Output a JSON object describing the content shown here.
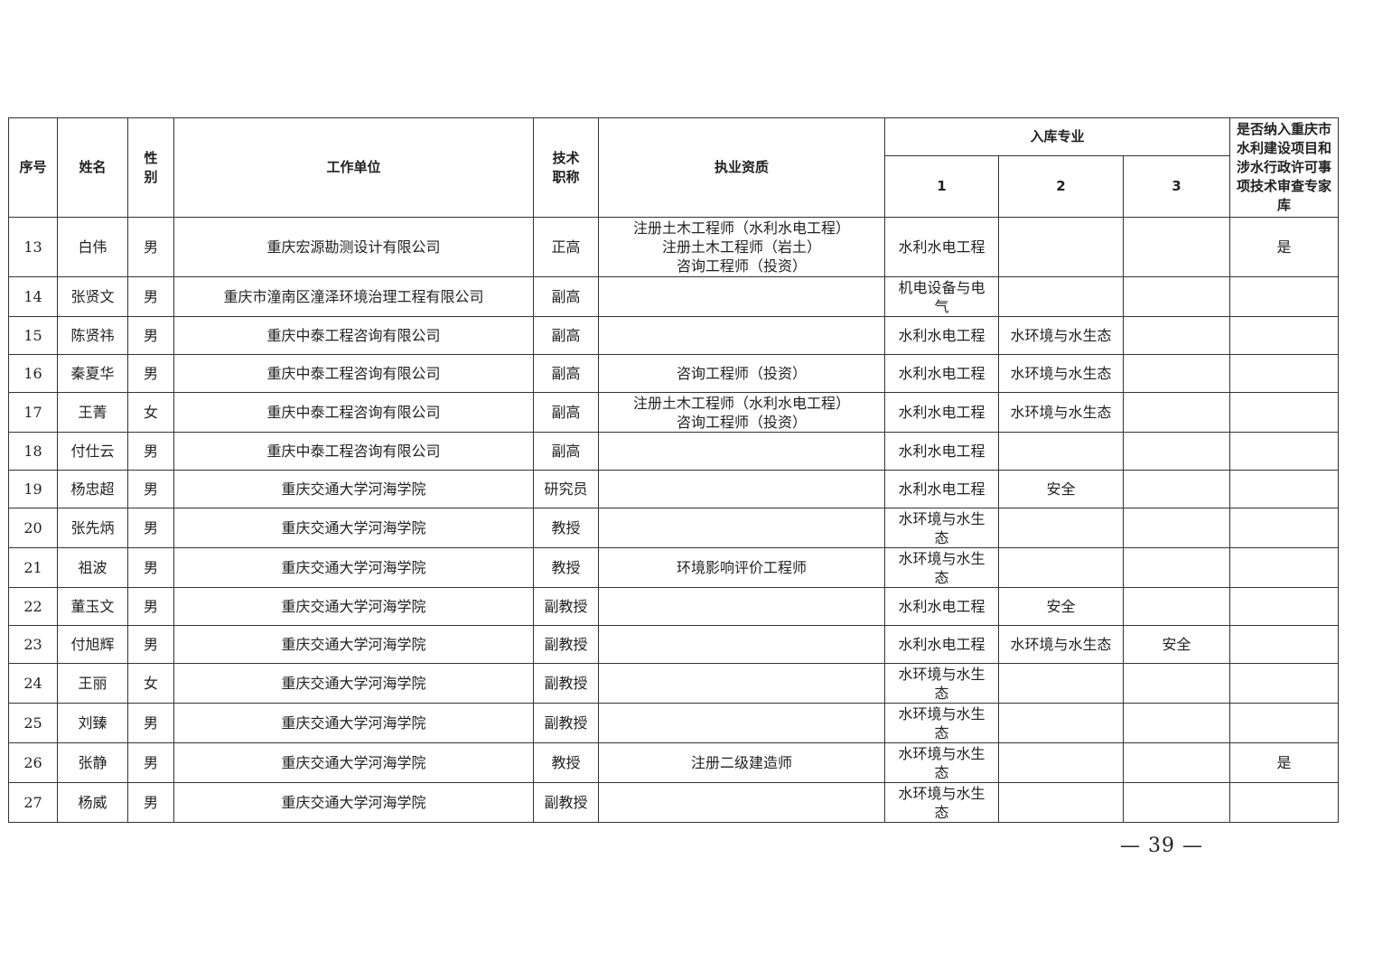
{
  "headers": {
    "no": "序号",
    "name": "姓名",
    "gender": "性\n别",
    "unit": "工作单位",
    "title": "技术\n职称",
    "qualification": "执业资质",
    "specialty": "入库专业",
    "specialty_1": "1",
    "specialty_2": "2",
    "specialty_3": "3",
    "included": "是否纳入重庆市水利建设项目和涉水行政许可事项技术审查专家库"
  },
  "rows": [
    {
      "no": "13",
      "name": "白伟",
      "gender": "男",
      "unit": "重庆宏源勘测设计有限公司",
      "title": "正高",
      "qual": "注册土木工程师（水利水电工程）\n注册土木工程师（岩土）\n咨询工程师（投资）",
      "s1": "水利水电工程",
      "s2": "",
      "s3": "",
      "inc": "是"
    },
    {
      "no": "14",
      "name": "张贤文",
      "gender": "男",
      "unit": "重庆市潼南区潼泽环境治理工程有限公司",
      "title": "副高",
      "qual": "",
      "s1": "机电设备与电气",
      "s2": "",
      "s3": "",
      "inc": ""
    },
    {
      "no": "15",
      "name": "陈贤祎",
      "gender": "男",
      "unit": "重庆中泰工程咨询有限公司",
      "title": "副高",
      "qual": "",
      "s1": "水利水电工程",
      "s2": "水环境与水生态",
      "s3": "",
      "inc": ""
    },
    {
      "no": "16",
      "name": "秦夏华",
      "gender": "男",
      "unit": "重庆中泰工程咨询有限公司",
      "title": "副高",
      "qual": "咨询工程师（投资）",
      "s1": "水利水电工程",
      "s2": "水环境与水生态",
      "s3": "",
      "inc": ""
    },
    {
      "no": "17",
      "name": "王菁",
      "gender": "女",
      "unit": "重庆中泰工程咨询有限公司",
      "title": "副高",
      "qual": "注册土木工程师（水利水电工程）\n咨询工程师（投资）",
      "s1": "水利水电工程",
      "s2": "水环境与水生态",
      "s3": "",
      "inc": ""
    },
    {
      "no": "18",
      "name": "付仕云",
      "gender": "男",
      "unit": "重庆中泰工程咨询有限公司",
      "title": "副高",
      "qual": "",
      "s1": "水利水电工程",
      "s2": "",
      "s3": "",
      "inc": ""
    },
    {
      "no": "19",
      "name": "杨忠超",
      "gender": "男",
      "unit": "重庆交通大学河海学院",
      "title": "研究员",
      "qual": "",
      "s1": "水利水电工程",
      "s2": "安全",
      "s3": "",
      "inc": ""
    },
    {
      "no": "20",
      "name": "张先炳",
      "gender": "男",
      "unit": "重庆交通大学河海学院",
      "title": "教授",
      "qual": "",
      "s1": "水环境与水生态",
      "s2": "",
      "s3": "",
      "inc": ""
    },
    {
      "no": "21",
      "name": "祖波",
      "gender": "男",
      "unit": "重庆交通大学河海学院",
      "title": "教授",
      "qual": "环境影响评价工程师",
      "s1": "水环境与水生态",
      "s2": "",
      "s3": "",
      "inc": ""
    },
    {
      "no": "22",
      "name": "董玉文",
      "gender": "男",
      "unit": "重庆交通大学河海学院",
      "title": "副教授",
      "qual": "",
      "s1": "水利水电工程",
      "s2": "安全",
      "s3": "",
      "inc": ""
    },
    {
      "no": "23",
      "name": "付旭辉",
      "gender": "男",
      "unit": "重庆交通大学河海学院",
      "title": "副教授",
      "qual": "",
      "s1": "水利水电工程",
      "s2": "水环境与水生态",
      "s3": "安全",
      "inc": ""
    },
    {
      "no": "24",
      "name": "王丽",
      "gender": "女",
      "unit": "重庆交通大学河海学院",
      "title": "副教授",
      "qual": "",
      "s1": "水环境与水生态",
      "s2": "",
      "s3": "",
      "inc": ""
    },
    {
      "no": "25",
      "name": "刘臻",
      "gender": "男",
      "unit": "重庆交通大学河海学院",
      "title": "副教授",
      "qual": "",
      "s1": "水环境与水生态",
      "s2": "",
      "s3": "",
      "inc": ""
    },
    {
      "no": "26",
      "name": "张静",
      "gender": "男",
      "unit": "重庆交通大学河海学院",
      "title": "教授",
      "qual": "注册二级建造师",
      "s1": "水环境与水生态",
      "s2": "",
      "s3": "",
      "inc": "是"
    },
    {
      "no": "27",
      "name": "杨威",
      "gender": "男",
      "unit": "重庆交通大学河海学院",
      "title": "副教授",
      "qual": "",
      "s1": "水环境与水生态",
      "s2": "",
      "s3": "",
      "inc": ""
    }
  ],
  "page_number": "— 39 —"
}
